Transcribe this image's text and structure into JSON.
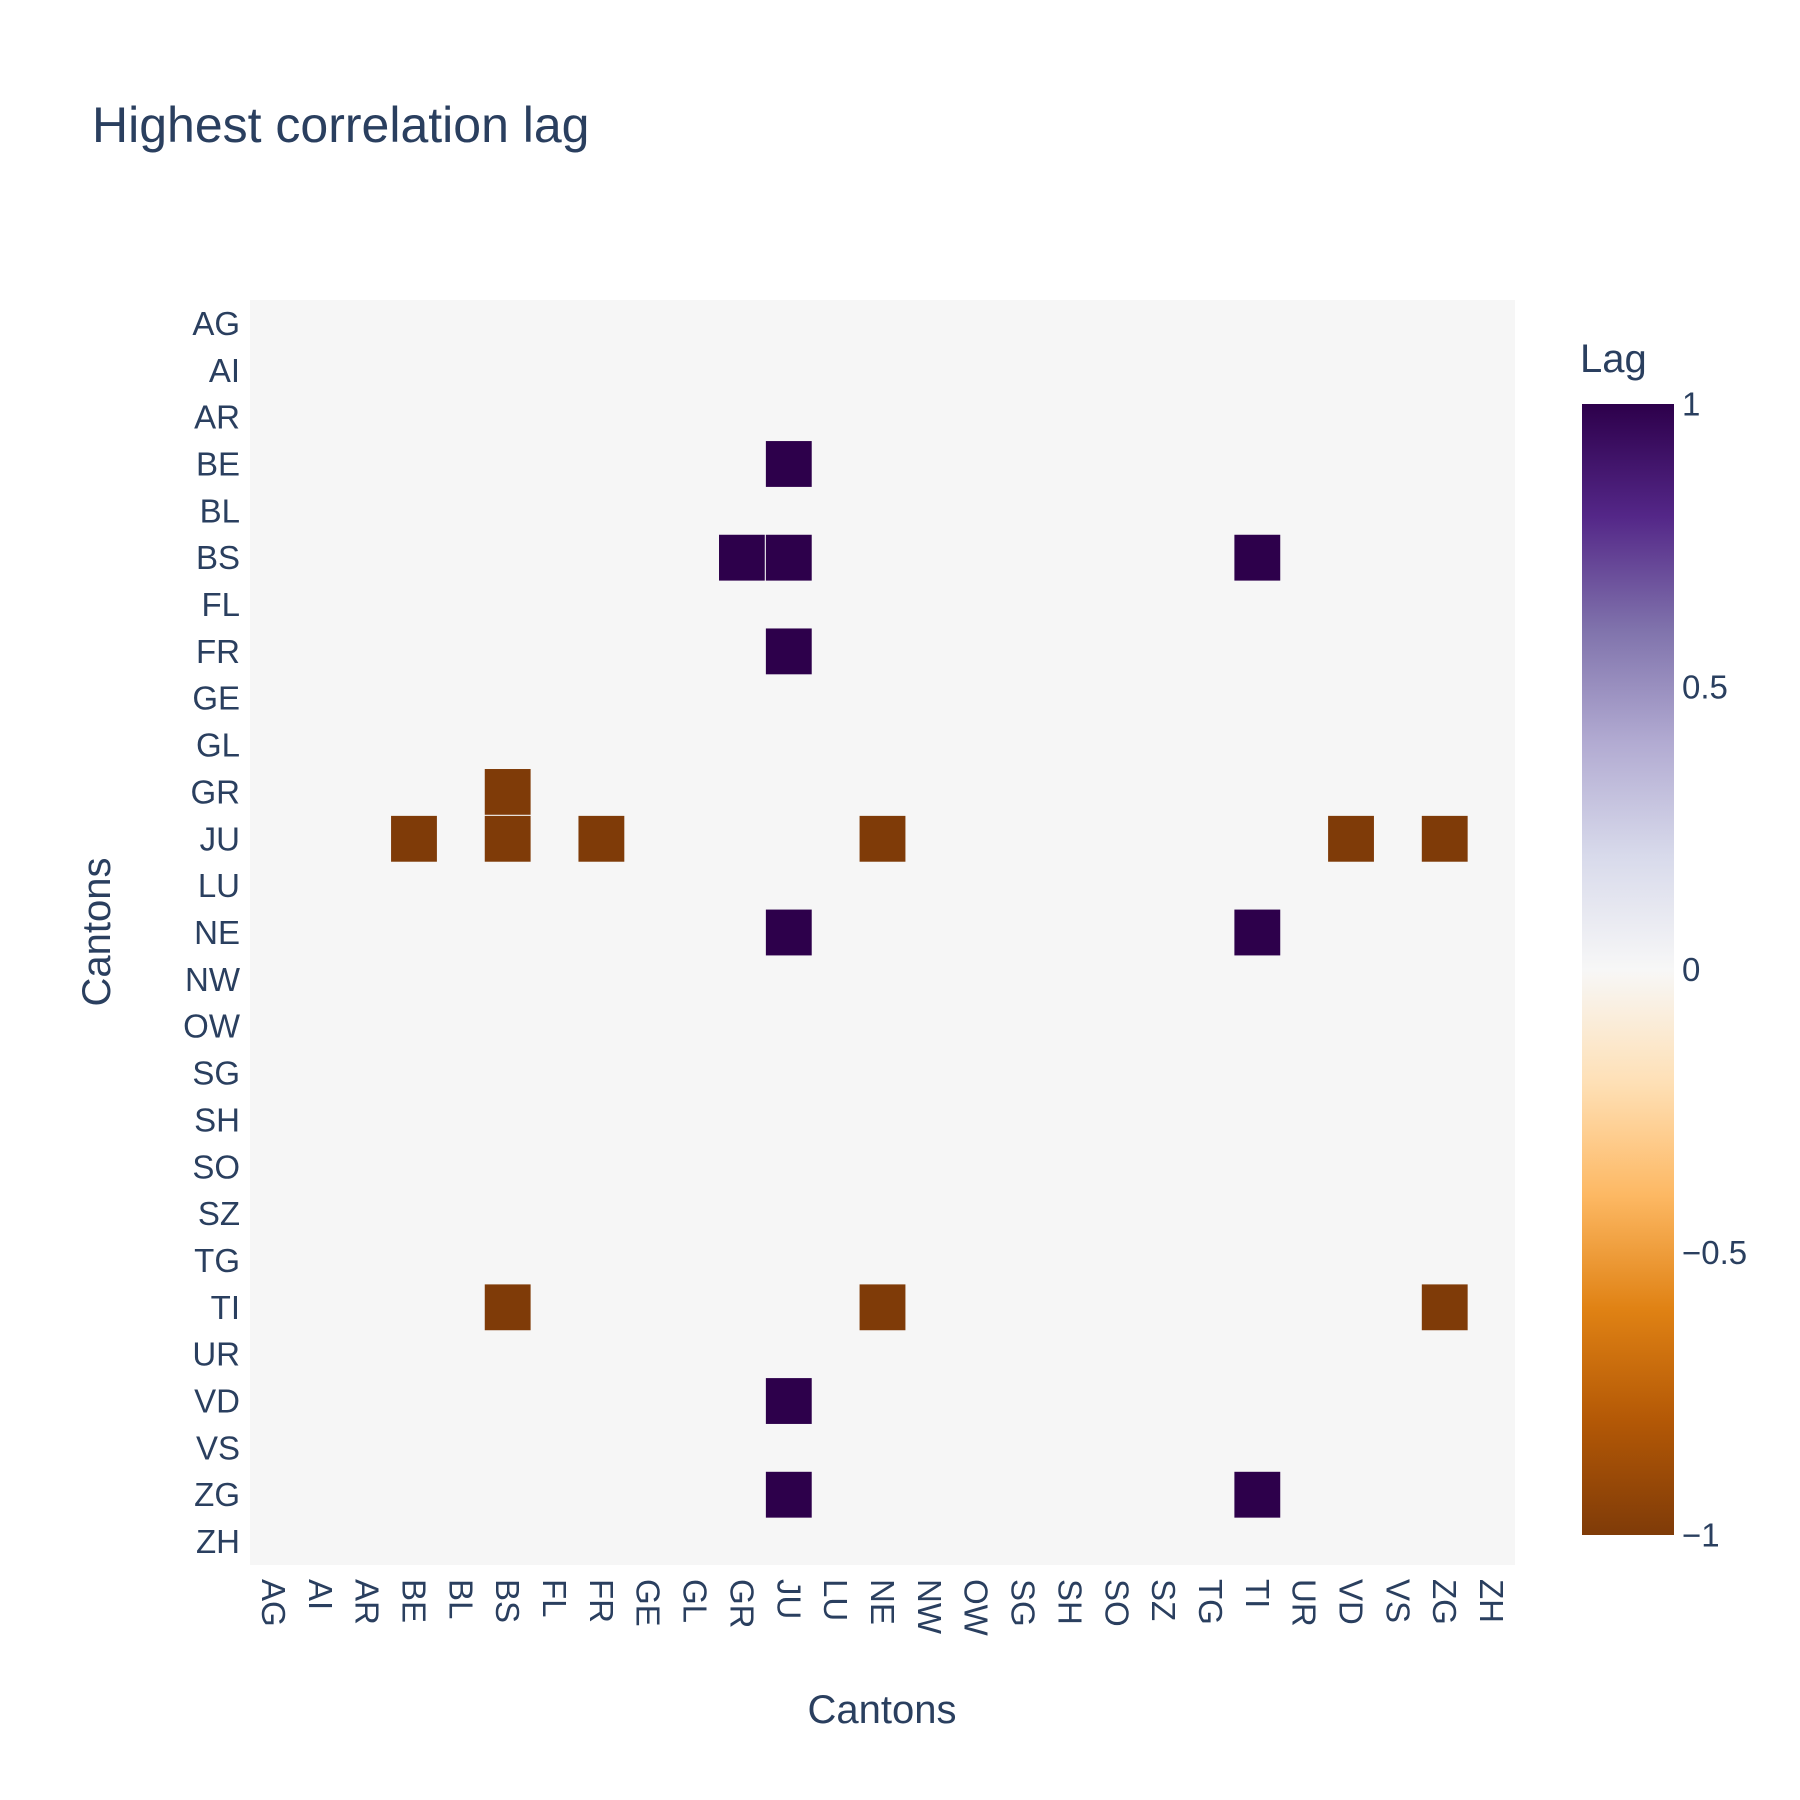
{
  "chart_data": {
    "type": "heatmap",
    "title": "Highest correlation lag",
    "xlabel": "Cantons",
    "ylabel": "Cantons",
    "categories_x": [
      "AG",
      "AI",
      "AR",
      "BE",
      "BL",
      "BS",
      "FL",
      "FR",
      "GE",
      "GL",
      "GR",
      "JU",
      "LU",
      "NE",
      "NW",
      "OW",
      "SG",
      "SH",
      "SO",
      "SZ",
      "TG",
      "TI",
      "UR",
      "VD",
      "VS",
      "ZG",
      "ZH"
    ],
    "categories_y": [
      "AG",
      "AI",
      "AR",
      "BE",
      "BL",
      "BS",
      "FL",
      "FR",
      "GE",
      "GL",
      "GR",
      "JU",
      "LU",
      "NE",
      "NW",
      "OW",
      "SG",
      "SH",
      "SO",
      "SZ",
      "TG",
      "TI",
      "UR",
      "VD",
      "VS",
      "ZG",
      "ZH"
    ],
    "default_value": 0,
    "cells": [
      {
        "x": "JU",
        "y": "BE",
        "value": 1
      },
      {
        "x": "GR",
        "y": "BS",
        "value": 1
      },
      {
        "x": "JU",
        "y": "BS",
        "value": 1
      },
      {
        "x": "TI",
        "y": "BS",
        "value": 1
      },
      {
        "x": "JU",
        "y": "FR",
        "value": 1
      },
      {
        "x": "BS",
        "y": "GR",
        "value": -1
      },
      {
        "x": "BE",
        "y": "JU",
        "value": -1
      },
      {
        "x": "BS",
        "y": "JU",
        "value": -1
      },
      {
        "x": "FR",
        "y": "JU",
        "value": -1
      },
      {
        "x": "NE",
        "y": "JU",
        "value": -1
      },
      {
        "x": "VD",
        "y": "JU",
        "value": -1
      },
      {
        "x": "ZG",
        "y": "JU",
        "value": -1
      },
      {
        "x": "JU",
        "y": "NE",
        "value": 1
      },
      {
        "x": "TI",
        "y": "NE",
        "value": 1
      },
      {
        "x": "BS",
        "y": "TI",
        "value": -1
      },
      {
        "x": "NE",
        "y": "TI",
        "value": -1
      },
      {
        "x": "ZG",
        "y": "TI",
        "value": -1
      },
      {
        "x": "JU",
        "y": "VD",
        "value": 1
      },
      {
        "x": "JU",
        "y": "ZG",
        "value": 1
      },
      {
        "x": "TI",
        "y": "ZG",
        "value": 1
      }
    ],
    "zlim": [
      -1,
      1
    ],
    "colorbar": {
      "title": "Lag",
      "tick_labels": [
        "1",
        "0.5",
        "0",
        "−0.5",
        "−1"
      ],
      "tick_values": [
        1,
        0.5,
        0,
        -0.5,
        -1
      ]
    },
    "colorscale": {
      "stops": [
        0,
        0.1,
        0.2,
        0.3,
        0.4,
        0.5,
        0.6,
        0.7,
        0.8,
        0.9,
        1
      ],
      "colors": [
        "#7f3b08",
        "#b35806",
        "#e08214",
        "#fdb863",
        "#fee0b6",
        "#f7f7f7",
        "#d8daeb",
        "#b2abd2",
        "#8073ac",
        "#542788",
        "#2d004b"
      ]
    },
    "plot_background": "#f6f6f6",
    "grid": false,
    "legend_placement": "right"
  }
}
